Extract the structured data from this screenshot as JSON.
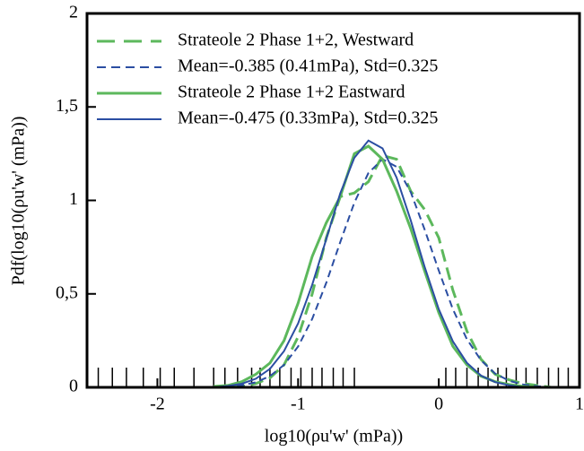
{
  "chart_data": {
    "type": "line",
    "xlabel": "log10(ρu'w' (mPa))",
    "ylabel": "Pdf(log10(ρu'w' (mPa))",
    "x": [
      -1.6,
      -1.5,
      -1.4,
      -1.3,
      -1.2,
      -1.1,
      -1.0,
      -0.9,
      -0.8,
      -0.7,
      -0.6,
      -0.5,
      -0.4,
      -0.3,
      -0.2,
      -0.1,
      0,
      0.1,
      0.2,
      0.3,
      0.4,
      0.5,
      0.6,
      0.7,
      0.8
    ],
    "series": [
      {
        "name": "Strateole 2 Phase 1+2, Westward",
        "color": "#5cb85c",
        "dash": true,
        "width": 3,
        "values": [
          0,
          0,
          0.005,
          0.02,
          0.05,
          0.12,
          0.27,
          0.5,
          0.8,
          1.02,
          1.04,
          1.1,
          1.24,
          1.22,
          1.05,
          0.95,
          0.8,
          0.52,
          0.3,
          0.15,
          0.07,
          0.04,
          0.02,
          0.01,
          0
        ]
      },
      {
        "name": "Mean=-0.385 (0.41mPa), Std=0.325",
        "color": "#2b4ea2",
        "dash": true,
        "width": 2,
        "values": [
          0,
          0.004,
          0.011,
          0.027,
          0.06,
          0.12,
          0.218,
          0.366,
          0.559,
          0.777,
          0.988,
          1.147,
          1.22,
          1.18,
          1.045,
          0.842,
          0.625,
          0.418,
          0.257,
          0.145,
          0.074,
          0.035,
          0.015,
          0.006,
          0
        ]
      },
      {
        "name": "Strateole 2 Phase 1+2 Eastward",
        "color": "#5cb85c",
        "dash": false,
        "width": 3,
        "values": [
          0.005,
          0.01,
          0.03,
          0.07,
          0.13,
          0.25,
          0.45,
          0.7,
          0.88,
          1.02,
          1.25,
          1.29,
          1.22,
          1.05,
          0.85,
          0.62,
          0.4,
          0.22,
          0.12,
          0.06,
          0.03,
          0.015,
          0.005,
          0,
          0
        ]
      },
      {
        "name": "Mean=-0.475 (0.33mPa), Std=0.325",
        "color": "#2b4ea2",
        "dash": false,
        "width": 2,
        "values": [
          0,
          0.007,
          0.019,
          0.046,
          0.099,
          0.194,
          0.342,
          0.548,
          0.793,
          1.038,
          1.228,
          1.32,
          1.278,
          1.122,
          0.894,
          0.642,
          0.418,
          0.246,
          0.131,
          0.063,
          0.028,
          0.011,
          0,
          0,
          0
        ]
      }
    ],
    "rug": [
      -2.42,
      -2.32,
      -2.22,
      -2.1,
      -1.98,
      -1.88,
      -1.74,
      -1.6,
      -1.52,
      -1.43,
      -1.33,
      -1.27,
      -1.2,
      -1.13,
      -1.05,
      -0.98,
      -0.9,
      -0.83,
      -0.75,
      -0.68,
      -0.6,
      0.05,
      0.12,
      0.2,
      0.28,
      0.35,
      0.42,
      0.48,
      0.55,
      0.62,
      0.7,
      0.78,
      0.85,
      0.92
    ],
    "xlim": [
      -2.5,
      1
    ],
    "xticks": [
      -2,
      -1,
      0,
      1
    ],
    "ylim": [
      0,
      2
    ],
    "yticks": [
      0,
      {
        "value": 0.5,
        "label": "0,5"
      },
      1,
      {
        "value": 1.5,
        "label": "1,5"
      },
      2
    ],
    "legend": "upper-left"
  }
}
